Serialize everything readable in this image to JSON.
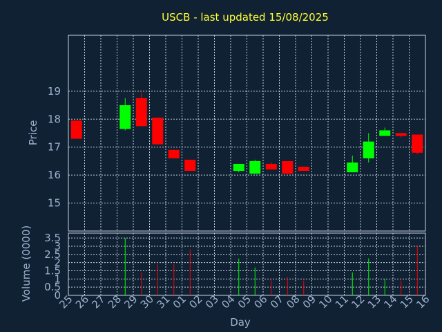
{
  "title": "USCB - last updated 15/08/2025",
  "colors": {
    "background": "#0f2133",
    "up": "#00ff00",
    "down": "#ff0000",
    "text": "#9fb3cf",
    "title": "#ffff33",
    "grid": "#c8d2e0"
  },
  "chart_data": [
    {
      "type": "candlestick",
      "ylabel": "Price",
      "ylim": [
        14,
        21
      ],
      "yticks": [
        15,
        16,
        17,
        18,
        19
      ],
      "grid": true,
      "x": [
        "25",
        "26",
        "27",
        "28",
        "29",
        "30",
        "31",
        "01",
        "02",
        "03",
        "04",
        "05",
        "06",
        "07",
        "08",
        "09",
        "10",
        "11",
        "12",
        "13",
        "14",
        "15",
        "16"
      ],
      "candles": [
        {
          "x": "25",
          "open": 17.95,
          "high": 17.95,
          "low": 17.3,
          "close": 17.3
        },
        {
          "x": "28",
          "open": 17.65,
          "high": 18.75,
          "low": 17.6,
          "close": 18.5
        },
        {
          "x": "29",
          "open": 18.75,
          "high": 18.95,
          "low": 17.75,
          "close": 17.75
        },
        {
          "x": "30",
          "open": 18.05,
          "high": 18.05,
          "low": 17.1,
          "close": 17.1
        },
        {
          "x": "31",
          "open": 16.9,
          "high": 16.9,
          "low": 16.6,
          "close": 16.6
        },
        {
          "x": "01",
          "open": 16.55,
          "high": 16.55,
          "low": 16.15,
          "close": 16.15
        },
        {
          "x": "04",
          "open": 16.15,
          "high": 16.4,
          "low": 16.1,
          "close": 16.4
        },
        {
          "x": "05",
          "open": 16.05,
          "high": 16.55,
          "low": 16.05,
          "close": 16.5
        },
        {
          "x": "06",
          "open": 16.4,
          "high": 16.45,
          "low": 16.2,
          "close": 16.2
        },
        {
          "x": "07",
          "open": 16.5,
          "high": 16.5,
          "low": 16.05,
          "close": 16.05
        },
        {
          "x": "08",
          "open": 16.3,
          "high": 16.3,
          "low": 16.15,
          "close": 16.15
        },
        {
          "x": "11",
          "open": 16.1,
          "high": 16.7,
          "low": 16.1,
          "close": 16.45
        },
        {
          "x": "12",
          "open": 16.6,
          "high": 17.5,
          "low": 16.45,
          "close": 17.2
        },
        {
          "x": "13",
          "open": 17.4,
          "high": 17.7,
          "low": 17.4,
          "close": 17.6
        },
        {
          "x": "14",
          "open": 17.5,
          "high": 17.5,
          "low": 17.35,
          "close": 17.4
        },
        {
          "x": "15",
          "open": 17.45,
          "high": 17.45,
          "low": 16.75,
          "close": 16.8
        }
      ]
    },
    {
      "type": "bar",
      "xlabel": "Day",
      "ylabel": "Volume (0000)",
      "ylim": [
        0,
        3.8
      ],
      "yticks": [
        0,
        0.5,
        1,
        1.5,
        2,
        2.5,
        3,
        3.5
      ],
      "ytick_labels": [
        "0",
        "0.5",
        "1",
        "1.5",
        "2",
        "2.5",
        "3",
        "3.5"
      ],
      "grid": true,
      "categories": [
        "25",
        "26",
        "27",
        "28",
        "29",
        "30",
        "31",
        "01",
        "02",
        "03",
        "04",
        "05",
        "06",
        "07",
        "08",
        "09",
        "10",
        "11",
        "12",
        "13",
        "14",
        "15",
        "16"
      ],
      "values": [
        0,
        0,
        0,
        3.5,
        1.4,
        1.9,
        1.9,
        2.8,
        0,
        0,
        2.25,
        1.7,
        1.0,
        1.1,
        0.9,
        0,
        0,
        1.4,
        2.25,
        1.0,
        0.9,
        3.0,
        0
      ],
      "direction": [
        "",
        "",
        "",
        "up",
        "down",
        "down",
        "down",
        "down",
        "",
        "",
        "up",
        "up",
        "down",
        "down",
        "down",
        "",
        "",
        "up",
        "up",
        "up",
        "down",
        "down",
        ""
      ]
    }
  ]
}
